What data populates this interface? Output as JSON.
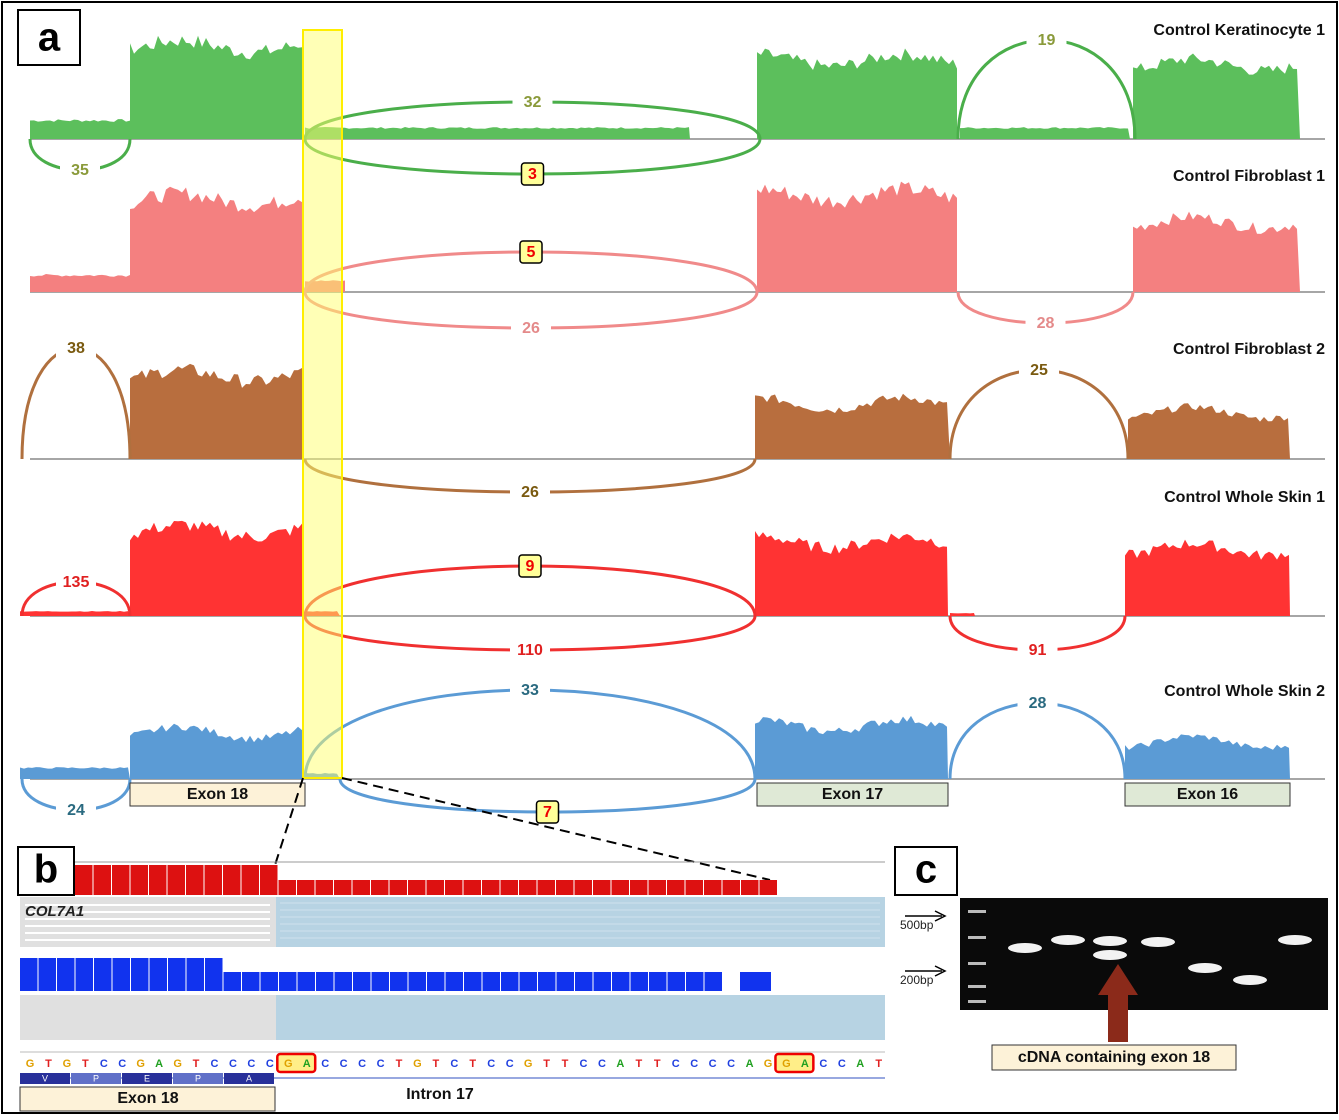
{
  "panel_a": {
    "label": "a",
    "tracks": [
      {
        "name": "Control Keratinocyte 1",
        "junctions": [
          19,
          32,
          35,
          3
        ]
      },
      {
        "name": "Control Fibroblast 1",
        "junctions": [
          5,
          26,
          28
        ]
      },
      {
        "name": "Control Fibroblast 2",
        "junctions": [
          38,
          25,
          26
        ]
      },
      {
        "name": "Control Whole Skin 1",
        "junctions": [
          135,
          9,
          110,
          91
        ]
      },
      {
        "name": "Control Whole Skin 2",
        "junctions": [
          33,
          28,
          24,
          7
        ]
      }
    ],
    "exons": [
      "Exon 18",
      "Exon 17",
      "Exon 16"
    ]
  },
  "panel_b": {
    "label": "b",
    "gene": "COL7A1",
    "sequence": [
      "G",
      "T",
      "G",
      "T",
      "C",
      "C",
      "G",
      "A",
      "G",
      "T",
      "C",
      "C",
      "C",
      "C",
      "G",
      "A",
      "C",
      "C",
      "C",
      "C",
      "T",
      "G",
      "T",
      "C",
      "T",
      "C",
      "C",
      "G",
      "T",
      "T",
      "C",
      "C",
      "A",
      "T",
      "T",
      "C",
      "C",
      "C",
      "C",
      "A",
      "G",
      "G",
      "A",
      "C",
      "C",
      "A",
      "T"
    ],
    "amino_acids": [
      "V",
      "P",
      "E",
      "P",
      "A"
    ],
    "exon": "Exon 18",
    "intron": "Intron 17"
  },
  "panel_c": {
    "label": "c",
    "markers": [
      "500bp",
      "200bp"
    ],
    "annotation": "cDNA containing exon 18"
  }
}
